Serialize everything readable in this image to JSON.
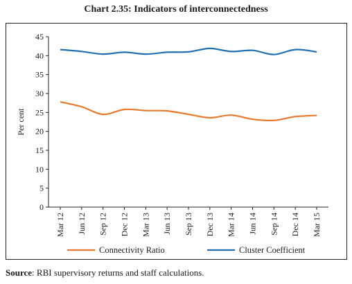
{
  "title": "Chart 2.35: Indicators of interconnectedness",
  "source_label": "Source",
  "source_text": ": RBI supervisory returns and staff calculations.",
  "chart_data": {
    "type": "line",
    "title": "Chart 2.35: Indicators of interconnectedness",
    "xlabel": "",
    "ylabel": "Per cent",
    "ylim": [
      0,
      45
    ],
    "yticks": [
      0,
      5,
      10,
      15,
      20,
      25,
      30,
      35,
      40,
      45
    ],
    "grid": false,
    "legend_position": "bottom",
    "categories": [
      "Mar 12",
      "Jun 12",
      "Sep 12",
      "Dec 12",
      "Mar 13",
      "Jun 13",
      "Sep 13",
      "Dec 13",
      "Mar 14",
      "Jun 14",
      "Sep 14",
      "Dec 14",
      "Mar 15"
    ],
    "series": [
      {
        "name": "Connectivity Ratio",
        "color": "#e8782a",
        "values": [
          27.8,
          26.5,
          24.5,
          25.8,
          25.5,
          25.4,
          24.5,
          23.6,
          24.3,
          23.2,
          22.9,
          23.9,
          24.2
        ]
      },
      {
        "name": "Cluster Coefficient",
        "color": "#1f6fb2",
        "values": [
          41.6,
          41.1,
          40.4,
          40.9,
          40.4,
          40.9,
          41.0,
          41.9,
          41.1,
          41.4,
          40.3,
          41.6,
          41.0
        ]
      }
    ]
  }
}
